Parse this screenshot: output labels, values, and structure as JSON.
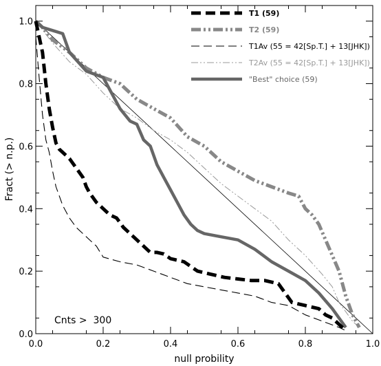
{
  "chart_data": {
    "type": "line",
    "title": "",
    "xlabel": "null probility",
    "ylabel": "Fract (> n.p.)",
    "xlim": [
      0,
      1
    ],
    "ylim": [
      0,
      1.05
    ],
    "xticks": [
      "0.0",
      "0.2",
      "0.4",
      "0.6",
      "0.8",
      "1.0"
    ],
    "yticks": [
      "0.0",
      "0.2",
      "0.4",
      "0.6",
      "0.8",
      "1.0"
    ],
    "grid": false,
    "legend_position": "top-right",
    "annotation": "Cnts >  300",
    "series": [
      {
        "name": "T1 (59)",
        "color": "#000000",
        "style": "thick-dashed",
        "x": [
          0.0,
          0.01,
          0.02,
          0.03,
          0.04,
          0.05,
          0.06,
          0.07,
          0.08,
          0.1,
          0.12,
          0.14,
          0.15,
          0.16,
          0.18,
          0.19,
          0.2,
          0.22,
          0.24,
          0.26,
          0.28,
          0.3,
          0.32,
          0.34,
          0.36,
          0.38,
          0.4,
          0.44,
          0.48,
          0.52,
          0.56,
          0.6,
          0.64,
          0.68,
          0.72,
          0.76,
          0.8,
          0.84,
          0.86,
          0.88,
          0.9,
          0.92
        ],
        "y": [
          1.0,
          0.95,
          0.9,
          0.8,
          0.72,
          0.66,
          0.61,
          0.59,
          0.58,
          0.56,
          0.53,
          0.5,
          0.47,
          0.45,
          0.42,
          0.41,
          0.4,
          0.38,
          0.37,
          0.34,
          0.32,
          0.3,
          0.28,
          0.26,
          0.26,
          0.255,
          0.24,
          0.23,
          0.2,
          0.19,
          0.18,
          0.175,
          0.17,
          0.17,
          0.16,
          0.1,
          0.09,
          0.08,
          0.06,
          0.05,
          0.03,
          0.01
        ]
      },
      {
        "name": "T2 (59)",
        "color": "#888888",
        "style": "thick-dash-dot-dot",
        "x": [
          0.0,
          0.02,
          0.05,
          0.1,
          0.15,
          0.2,
          0.25,
          0.3,
          0.35,
          0.4,
          0.45,
          0.5,
          0.55,
          0.6,
          0.65,
          0.7,
          0.75,
          0.78,
          0.8,
          0.82,
          0.84,
          0.86,
          0.88,
          0.9,
          0.92,
          0.94,
          0.96
        ],
        "y": [
          1.0,
          0.98,
          0.94,
          0.9,
          0.85,
          0.82,
          0.8,
          0.75,
          0.72,
          0.69,
          0.63,
          0.6,
          0.55,
          0.52,
          0.49,
          0.47,
          0.45,
          0.44,
          0.4,
          0.38,
          0.35,
          0.3,
          0.25,
          0.2,
          0.12,
          0.06,
          0.02
        ]
      },
      {
        "name": "T1Av (55 = 42[Sp.T.] + 13[JHK])",
        "color": "#000000",
        "style": "thin-dashed",
        "x": [
          0.0,
          0.01,
          0.02,
          0.03,
          0.04,
          0.05,
          0.06,
          0.08,
          0.1,
          0.12,
          0.15,
          0.18,
          0.2,
          0.25,
          0.3,
          0.35,
          0.4,
          0.45,
          0.5,
          0.55,
          0.6,
          0.65,
          0.7,
          0.75,
          0.8,
          0.85,
          0.9,
          0.92
        ],
        "y": [
          0.95,
          0.82,
          0.7,
          0.62,
          0.58,
          0.52,
          0.47,
          0.41,
          0.37,
          0.34,
          0.31,
          0.28,
          0.245,
          0.23,
          0.22,
          0.2,
          0.18,
          0.16,
          0.15,
          0.14,
          0.13,
          0.12,
          0.1,
          0.09,
          0.06,
          0.04,
          0.02,
          0.01
        ]
      },
      {
        "name": "T2Av (55 = 42[Sp.T.] + 13[JHK])",
        "color": "#999999",
        "style": "thin-dash-dot-dot",
        "x": [
          0.0,
          0.05,
          0.1,
          0.15,
          0.2,
          0.25,
          0.3,
          0.35,
          0.4,
          0.45,
          0.5,
          0.55,
          0.6,
          0.65,
          0.7,
          0.75,
          0.8,
          0.85,
          0.88,
          0.9,
          0.92,
          0.94,
          0.96
        ],
        "y": [
          1.0,
          0.93,
          0.87,
          0.83,
          0.77,
          0.72,
          0.69,
          0.65,
          0.62,
          0.58,
          0.53,
          0.48,
          0.44,
          0.4,
          0.36,
          0.3,
          0.25,
          0.19,
          0.15,
          0.1,
          0.07,
          0.04,
          0.02
        ]
      },
      {
        "name": "\"Best\" choice (59)",
        "color": "#666666",
        "style": "thick-solid",
        "x": [
          0.0,
          0.02,
          0.05,
          0.08,
          0.1,
          0.15,
          0.2,
          0.22,
          0.25,
          0.28,
          0.3,
          0.32,
          0.34,
          0.36,
          0.38,
          0.4,
          0.42,
          0.44,
          0.46,
          0.48,
          0.5,
          0.55,
          0.6,
          0.65,
          0.7,
          0.75,
          0.8,
          0.84,
          0.88,
          0.92
        ],
        "y": [
          1.0,
          0.98,
          0.97,
          0.96,
          0.9,
          0.84,
          0.82,
          0.78,
          0.72,
          0.68,
          0.67,
          0.62,
          0.6,
          0.54,
          0.5,
          0.46,
          0.42,
          0.38,
          0.35,
          0.33,
          0.32,
          0.31,
          0.3,
          0.27,
          0.23,
          0.2,
          0.17,
          0.13,
          0.08,
          0.02
        ]
      }
    ],
    "reference_line": {
      "x": [
        0,
        1
      ],
      "y": [
        1,
        0
      ]
    }
  }
}
